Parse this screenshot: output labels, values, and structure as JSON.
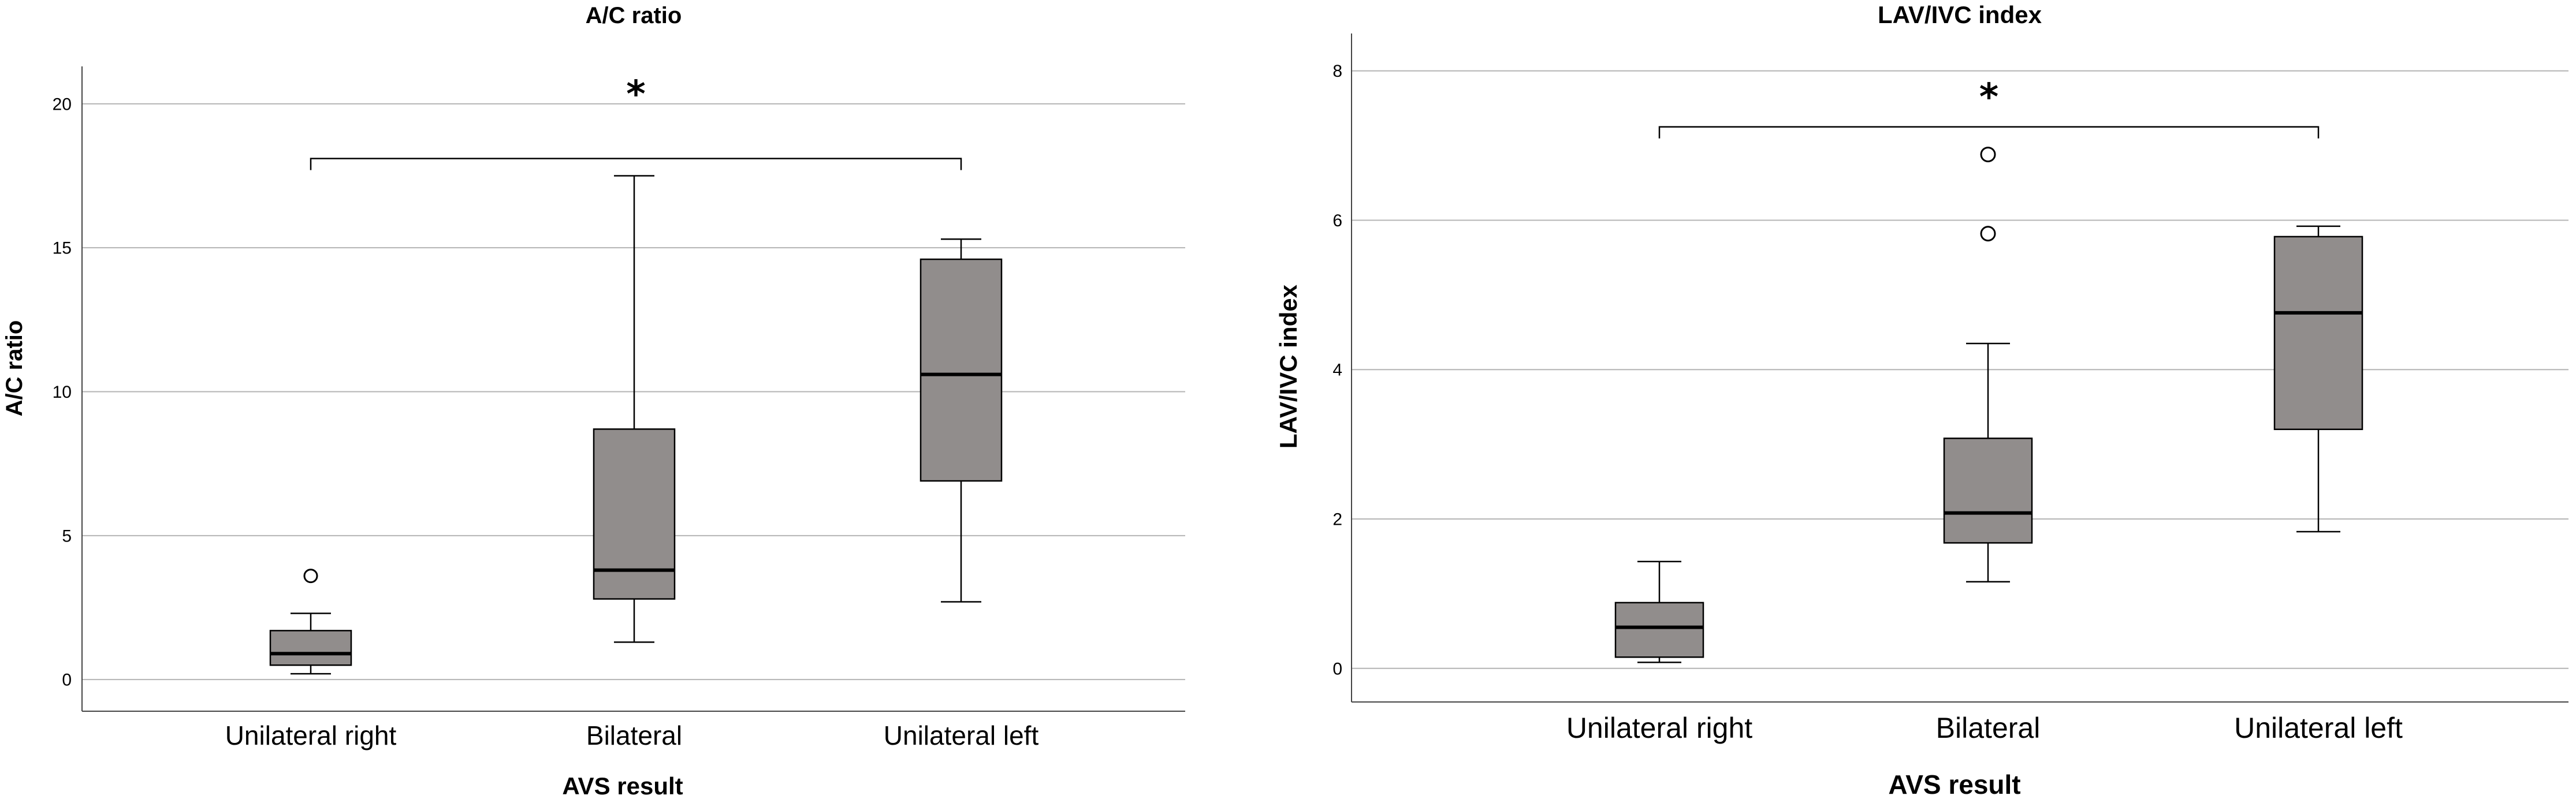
{
  "chart_data": [
    {
      "type": "box",
      "title": "A/C ratio",
      "xlabel": "AVS result",
      "ylabel": "A/C ratio",
      "ylim": [
        -1.1,
        21.3
      ],
      "yticks": [
        0,
        5,
        10,
        15,
        20
      ],
      "grid": true,
      "box_color": "#918d8c",
      "categories": [
        "Unilateral right",
        "Bilateral",
        "Unilateral left"
      ],
      "boxes": [
        {
          "category": "Unilateral right",
          "whisker_low": 0.2,
          "q1": 0.5,
          "median": 0.9,
          "q3": 1.7,
          "whisker_high": 2.3,
          "outliers": [
            3.6
          ]
        },
        {
          "category": "Bilateral",
          "whisker_low": 1.3,
          "q1": 2.8,
          "median": 3.8,
          "q3": 8.7,
          "whisker_high": 17.5,
          "outliers": []
        },
        {
          "category": "Unilateral left",
          "whisker_low": 2.7,
          "q1": 6.9,
          "median": 10.6,
          "q3": 14.6,
          "whisker_high": 15.3,
          "outliers": []
        }
      ],
      "significance": {
        "from": "Unilateral right",
        "to": "Unilateral left",
        "level": 18.1,
        "label": "*"
      }
    },
    {
      "type": "box",
      "title": "LAV/IVC index",
      "xlabel": "AVS result",
      "ylabel": "LAV/IVC index",
      "ylim": [
        -0.45,
        8.5
      ],
      "yticks": [
        0,
        2,
        4,
        6,
        8
      ],
      "grid": true,
      "box_color": "#918d8c",
      "categories": [
        "Unilateral right",
        "Bilateral",
        "Unilateral left"
      ],
      "boxes": [
        {
          "category": "Unilateral right",
          "whisker_low": 0.08,
          "q1": 0.15,
          "median": 0.55,
          "q3": 0.88,
          "whisker_high": 1.43,
          "outliers": []
        },
        {
          "category": "Bilateral",
          "whisker_low": 1.16,
          "q1": 1.68,
          "median": 2.08,
          "q3": 3.08,
          "whisker_high": 4.35,
          "outliers": [
            5.82,
            6.88
          ]
        },
        {
          "category": "Unilateral left",
          "whisker_low": 1.83,
          "q1": 3.2,
          "median": 4.76,
          "q3": 5.78,
          "whisker_high": 5.92,
          "outliers": []
        }
      ],
      "significance": {
        "from": "Unilateral right",
        "to": "Unilateral left",
        "level": 7.25,
        "label": "*"
      }
    }
  ]
}
